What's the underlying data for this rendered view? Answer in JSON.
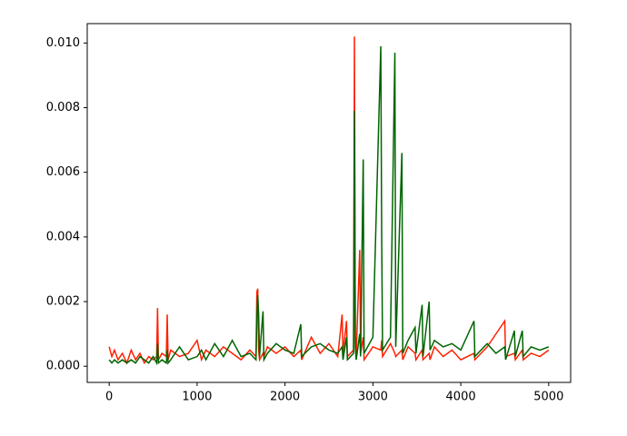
{
  "chart_data": {
    "type": "line",
    "x": [
      0,
      30,
      60,
      100,
      150,
      200,
      250,
      300,
      350,
      400,
      450,
      500,
      540,
      550,
      560,
      600,
      650,
      660,
      670,
      700,
      800,
      900,
      1000,
      1050,
      1100,
      1200,
      1300,
      1400,
      1500,
      1600,
      1670,
      1680,
      1690,
      1700,
      1710,
      1750,
      1760,
      1800,
      1900,
      2000,
      2100,
      2180,
      2190,
      2300,
      2400,
      2500,
      2600,
      2650,
      2660,
      2700,
      2710,
      2780,
      2790,
      2800,
      2810,
      2850,
      2860,
      2890,
      2900,
      3000,
      3090,
      3100,
      3110,
      3200,
      3250,
      3260,
      3330,
      3340,
      3400,
      3480,
      3490,
      3560,
      3570,
      3640,
      3650,
      3700,
      3800,
      3900,
      4000,
      4150,
      4160,
      4300,
      4400,
      4500,
      4510,
      4610,
      4620,
      4700,
      4710,
      4800,
      4900,
      5000
    ],
    "series": [
      {
        "color": "#ff2000",
        "values": [
          0.0006,
          0.0003,
          0.0005,
          0.0002,
          0.0004,
          0.0001,
          0.0005,
          0.0002,
          0.0004,
          0.0001,
          0.0003,
          0.0002,
          0.0003,
          0.0018,
          0.0002,
          0.0004,
          0.0003,
          0.0016,
          0.0002,
          0.0005,
          0.0003,
          0.0004,
          0.0008,
          0.0002,
          0.0005,
          0.0003,
          0.0006,
          0.0004,
          0.0002,
          0.0005,
          0.0003,
          0.0023,
          0.0024,
          0.0005,
          0.0002,
          0.0004,
          0.0003,
          0.0006,
          0.0004,
          0.0006,
          0.0003,
          0.0005,
          0.0002,
          0.0009,
          0.0004,
          0.0007,
          0.0003,
          0.0016,
          0.0004,
          0.0014,
          0.0003,
          0.0005,
          0.0102,
          0.0008,
          0.0003,
          0.0036,
          0.0004,
          0.0009,
          0.0002,
          0.0006,
          0.0005,
          0.0008,
          0.0003,
          0.0007,
          0.0004,
          0.0003,
          0.0005,
          0.0002,
          0.0006,
          0.0004,
          0.0002,
          0.0005,
          0.0002,
          0.0004,
          0.0002,
          0.0006,
          0.0003,
          0.0005,
          0.0002,
          0.0004,
          0.0002,
          0.0006,
          0.001,
          0.0014,
          0.0003,
          0.0004,
          0.0002,
          0.0005,
          0.0002,
          0.0004,
          0.0003,
          0.0005
        ]
      },
      {
        "color": "#006400",
        "values": [
          0.0002,
          0.0001,
          0.0002,
          0.0001,
          0.0002,
          0.0001,
          0.0002,
          0.0001,
          0.0003,
          0.0002,
          0.0001,
          0.0003,
          0.0001,
          0.0007,
          0.0001,
          0.0002,
          0.0001,
          0.0005,
          0.0001,
          0.0002,
          0.0006,
          0.0002,
          0.0003,
          0.0005,
          0.0002,
          0.0007,
          0.0003,
          0.0008,
          0.0003,
          0.0004,
          0.0002,
          0.0015,
          0.0022,
          0.0016,
          0.0003,
          0.0017,
          0.0002,
          0.0004,
          0.0007,
          0.0005,
          0.0004,
          0.0013,
          0.0003,
          0.0006,
          0.0007,
          0.0005,
          0.0004,
          0.0006,
          0.0002,
          0.0009,
          0.0002,
          0.0004,
          0.0079,
          0.0006,
          0.0002,
          0.001,
          0.0003,
          0.0064,
          0.0004,
          0.0009,
          0.0099,
          0.004,
          0.0005,
          0.0009,
          0.0097,
          0.0006,
          0.0066,
          0.0004,
          0.0008,
          0.0012,
          0.0004,
          0.0019,
          0.0003,
          0.002,
          0.0005,
          0.0008,
          0.0006,
          0.0007,
          0.0005,
          0.0014,
          0.0003,
          0.0007,
          0.0004,
          0.0006,
          0.0002,
          0.0011,
          0.0003,
          0.0011,
          0.0003,
          0.0006,
          0.0005,
          0.0006
        ]
      }
    ],
    "xlim": [
      -250,
      5250
    ],
    "ylim": [
      -0.0005,
      0.0106
    ],
    "xticks": [
      0,
      1000,
      2000,
      3000,
      4000,
      5000
    ],
    "yticks": [
      {
        "value": 0,
        "label": "0.000"
      },
      {
        "value": 0.002,
        "label": "0.002"
      },
      {
        "value": 0.004,
        "label": "0.004"
      },
      {
        "value": 0.006,
        "label": "0.006"
      },
      {
        "value": 0.008,
        "label": "0.008"
      },
      {
        "value": 0.01,
        "label": "0.010"
      }
    ]
  }
}
